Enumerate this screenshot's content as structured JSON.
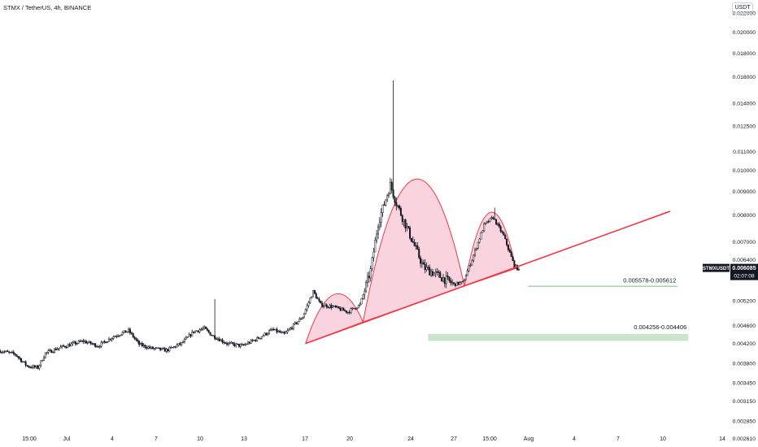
{
  "header": {
    "symbol_title": "STMX / TetherUS, 4h, BINANCE",
    "currency": "USDT"
  },
  "price_tag": {
    "symbol": "STMXUSDT",
    "price": "0.006085",
    "countdown": "02:07:08",
    "color": "#131722"
  },
  "colors": {
    "up": "#ffffff",
    "down": "#131722",
    "trendline": "#f23645",
    "pattern_fill": "#f7c5d4",
    "zone_fill": "#c8e6c9",
    "zone_line": "#a5d6a7",
    "grid_text": "#131722"
  },
  "chart_data": {
    "type": "candlestick",
    "title": "STMX / TetherUS, 4h, BINANCE",
    "y_scale": "log",
    "ylim": [
      0.0025,
      0.0235
    ],
    "yticks": [
      "0.022000",
      "0.020000",
      "0.018000",
      "0.016000",
      "0.014000",
      "0.012500",
      "0.011000",
      "0.010000",
      "0.009000",
      "0.008000",
      "0.007000",
      "0.006400",
      "0.005200",
      "0.004600",
      "0.004200",
      "0.003800",
      "0.003450",
      "0.003150",
      "0.002850",
      "0.002610"
    ],
    "xticks": [
      "15:00",
      "Jul",
      "4",
      "7",
      "10",
      "13",
      "17",
      "20",
      "24",
      "27",
      "15:00",
      "Aug",
      "4",
      "7",
      "10",
      "14"
    ],
    "anchors": [
      {
        "i": 0,
        "p": 0.00405
      },
      {
        "i": 10,
        "p": 0.00398
      },
      {
        "i": 18,
        "p": 0.00375
      },
      {
        "i": 25,
        "p": 0.00372
      },
      {
        "i": 30,
        "p": 0.004
      },
      {
        "i": 40,
        "p": 0.00412
      },
      {
        "i": 55,
        "p": 0.00425
      },
      {
        "i": 65,
        "p": 0.00415
      },
      {
        "i": 75,
        "p": 0.00435
      },
      {
        "i": 85,
        "p": 0.00448
      },
      {
        "i": 92,
        "p": 0.00418
      },
      {
        "i": 100,
        "p": 0.0041
      },
      {
        "i": 110,
        "p": 0.00406
      },
      {
        "i": 120,
        "p": 0.0042
      },
      {
        "i": 128,
        "p": 0.00446
      },
      {
        "i": 135,
        "p": 0.00453
      },
      {
        "i": 140,
        "p": 0.00438
      },
      {
        "i": 150,
        "p": 0.0042
      },
      {
        "i": 160,
        "p": 0.00415
      },
      {
        "i": 170,
        "p": 0.0043
      },
      {
        "i": 180,
        "p": 0.0045
      },
      {
        "i": 188,
        "p": 0.0044
      },
      {
        "i": 200,
        "p": 0.0048
      },
      {
        "i": 207,
        "p": 0.00545
      },
      {
        "i": 212,
        "p": 0.0051
      },
      {
        "i": 220,
        "p": 0.00505
      },
      {
        "i": 230,
        "p": 0.00492
      },
      {
        "i": 238,
        "p": 0.0051
      },
      {
        "i": 245,
        "p": 0.00605
      },
      {
        "i": 250,
        "p": 0.0077
      },
      {
        "i": 258,
        "p": 0.0093
      },
      {
        "i": 262,
        "p": 0.0085
      },
      {
        "i": 272,
        "p": 0.0071
      },
      {
        "i": 280,
        "p": 0.00615
      },
      {
        "i": 290,
        "p": 0.0059
      },
      {
        "i": 300,
        "p": 0.00565
      },
      {
        "i": 306,
        "p": 0.0057
      },
      {
        "i": 312,
        "p": 0.0064
      },
      {
        "i": 320,
        "p": 0.0076
      },
      {
        "i": 326,
        "p": 0.0079
      },
      {
        "i": 333,
        "p": 0.0072
      },
      {
        "i": 340,
        "p": 0.0062
      },
      {
        "i": 343,
        "p": 0.00608
      }
    ],
    "spikes": [
      {
        "i": 260,
        "high": 0.0157
      },
      {
        "i": 142,
        "high": 0.00525
      },
      {
        "i": 327,
        "high": 0.0083
      }
    ],
    "last_price": 0.006085,
    "annotations": {
      "trendline": {
        "from": {
          "i": 202,
          "p": 0.0042
        },
        "to": {
          "i": 443,
          "p": 0.00815
        }
      },
      "zone_upper": {
        "label": "0.005578-0.005612",
        "low": 0.005578,
        "high": 0.005612,
        "from_i": 349,
        "to_i": 448
      },
      "zone_lower": {
        "label": "0.004256-0.004406",
        "low": 0.004256,
        "high": 0.004406,
        "from_i": 283,
        "to_i": 455
      },
      "humps": [
        {
          "from": {
            "i": 202,
            "p": 0.0042
          },
          "to": {
            "i": 240,
            "p": 0.00468
          },
          "peak": 0.00537
        },
        {
          "from": {
            "i": 240,
            "p": 0.00468
          },
          "to": {
            "i": 307,
            "p": 0.0056
          },
          "peak": 0.00955
        },
        {
          "from": {
            "i": 307,
            "p": 0.0056
          },
          "to": {
            "i": 341,
            "p": 0.00612
          },
          "peak": 0.0081
        }
      ]
    }
  }
}
